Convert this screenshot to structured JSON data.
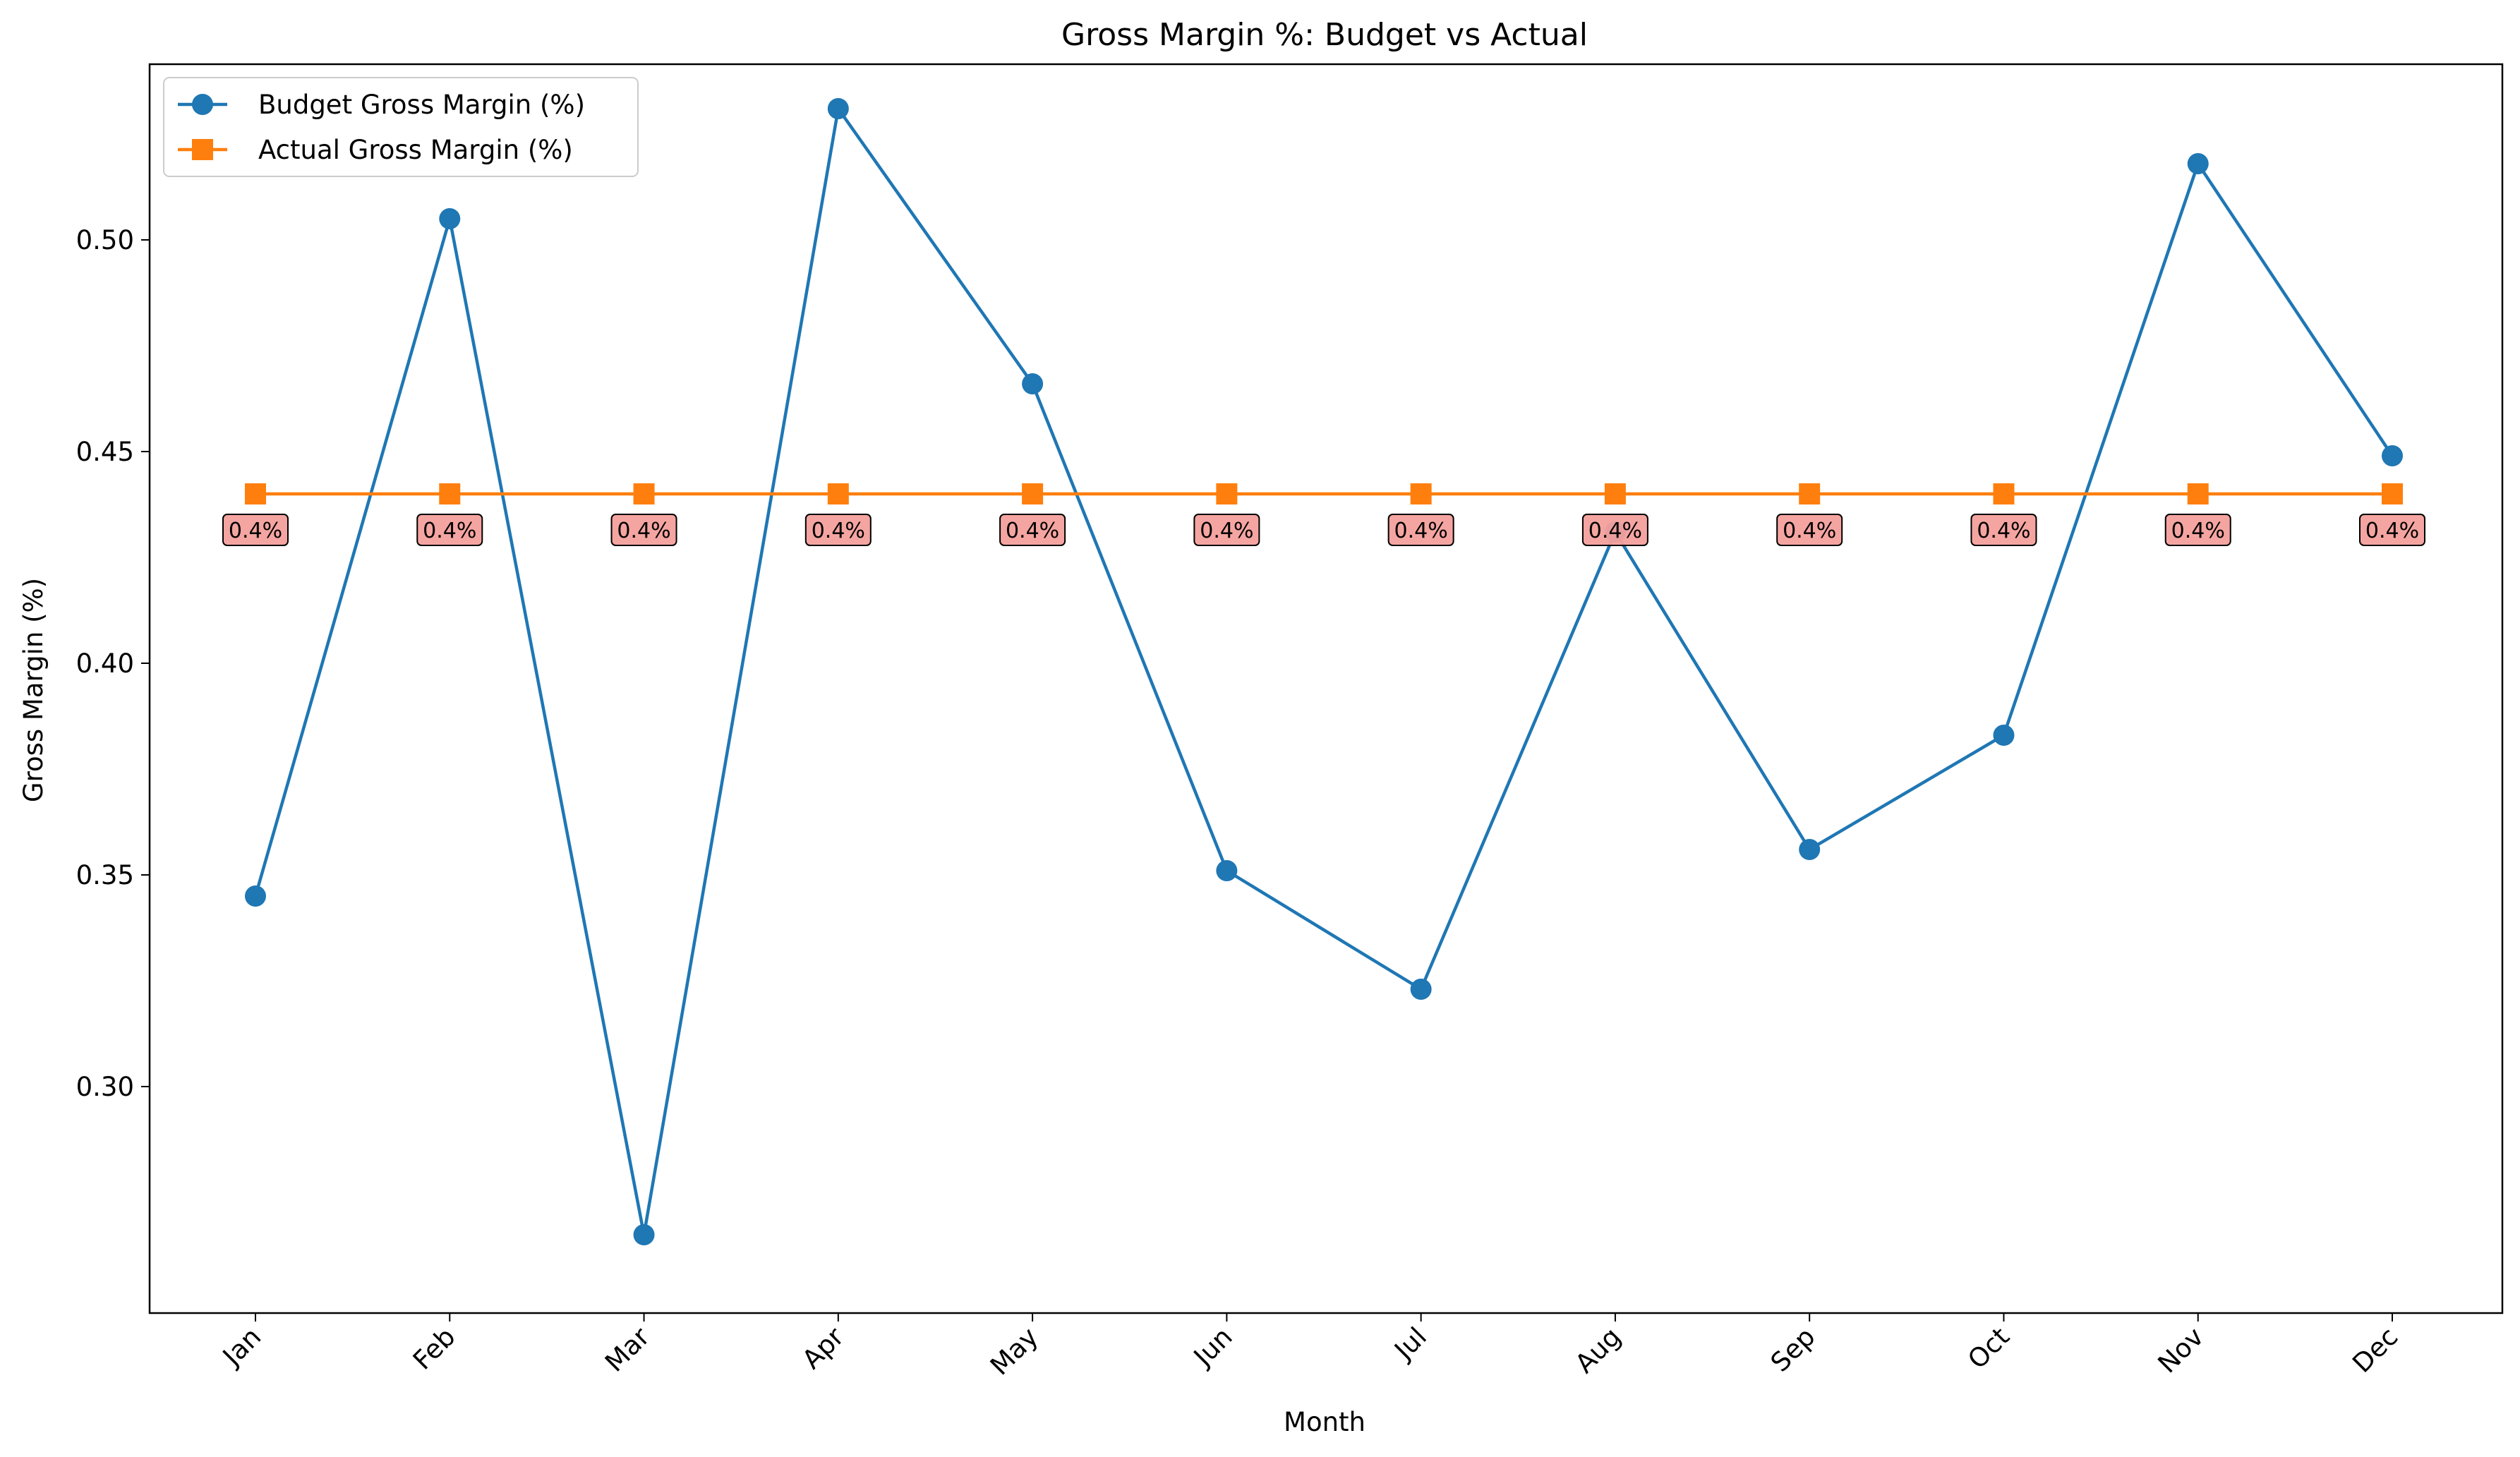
{
  "chart_data": {
    "type": "line",
    "title": "Gross Margin %: Budget vs Actual",
    "xlabel": "Month",
    "ylabel": "Gross Margin (%)",
    "categories": [
      "Jan",
      "Feb",
      "Mar",
      "Apr",
      "May",
      "Jun",
      "Jul",
      "Aug",
      "Sep",
      "Oct",
      "Nov",
      "Dec"
    ],
    "yticks": [
      "0.30",
      "0.35",
      "0.40",
      "0.45",
      "0.50"
    ],
    "ylim": [
      0.2465,
      0.5415
    ],
    "grid": false,
    "legend_position": "upper-left",
    "series": [
      {
        "name": "Budget Gross Margin (%)",
        "color": "#1f77b4",
        "marker": "circle",
        "values": [
          0.345,
          0.505,
          0.265,
          0.531,
          0.466,
          0.351,
          0.323,
          0.431,
          0.356,
          0.383,
          0.518,
          0.449
        ]
      },
      {
        "name": "Actual Gross Margin (%)",
        "color": "#ff7f0e",
        "marker": "square",
        "values": [
          0.44,
          0.44,
          0.44,
          0.44,
          0.44,
          0.44,
          0.44,
          0.44,
          0.44,
          0.44,
          0.44,
          0.44
        ],
        "data_labels": [
          "0.4%",
          "0.4%",
          "0.4%",
          "0.4%",
          "0.4%",
          "0.4%",
          "0.4%",
          "0.4%",
          "0.4%",
          "0.4%",
          "0.4%",
          "0.4%"
        ],
        "label_box_color": "#f4a09c"
      }
    ]
  }
}
